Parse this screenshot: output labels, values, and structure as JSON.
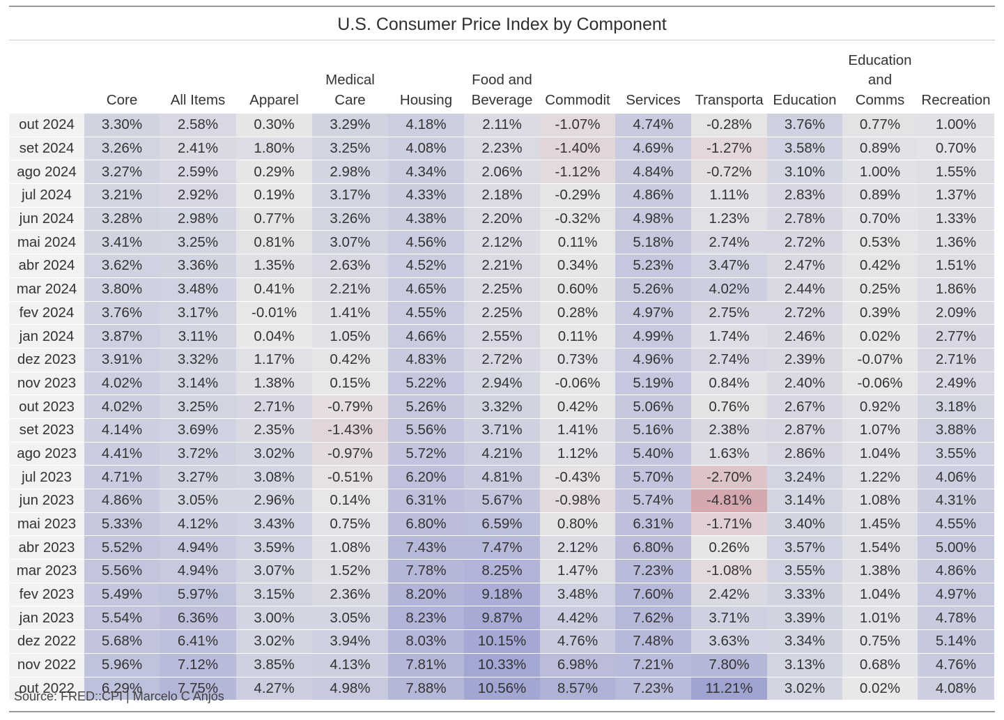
{
  "chart_data": {
    "type": "table",
    "title": "U.S. Consumer Price Index by Component",
    "columns": [
      "",
      "Core",
      "All Items",
      "Apparel",
      "Medical\nCare",
      "Housing",
      "Food and\nBeverage",
      "Commodit",
      "Services",
      "Transporta",
      "Education",
      "Education\nand\nComms",
      "Recreation"
    ],
    "rows": [
      {
        "date": "out 2024",
        "values": [
          "3.30%",
          "2.58%",
          "0.30%",
          "3.29%",
          "4.18%",
          "2.11%",
          "-1.07%",
          "4.74%",
          "-0.28%",
          "3.76%",
          "0.77%",
          "1.00%"
        ]
      },
      {
        "date": "set 2024",
        "values": [
          "3.26%",
          "2.41%",
          "1.80%",
          "3.25%",
          "4.08%",
          "2.23%",
          "-1.40%",
          "4.69%",
          "-1.27%",
          "3.58%",
          "0.89%",
          "0.70%"
        ]
      },
      {
        "date": "ago 2024",
        "values": [
          "3.27%",
          "2.59%",
          "0.29%",
          "2.98%",
          "4.34%",
          "2.06%",
          "-1.12%",
          "4.84%",
          "-0.72%",
          "3.10%",
          "1.00%",
          "1.55%"
        ]
      },
      {
        "date": "jul 2024",
        "values": [
          "3.21%",
          "2.92%",
          "0.19%",
          "3.17%",
          "4.33%",
          "2.18%",
          "-0.29%",
          "4.86%",
          "1.11%",
          "2.83%",
          "0.89%",
          "1.37%"
        ]
      },
      {
        "date": "jun 2024",
        "values": [
          "3.28%",
          "2.98%",
          "0.77%",
          "3.26%",
          "4.38%",
          "2.20%",
          "-0.32%",
          "4.98%",
          "1.23%",
          "2.78%",
          "0.70%",
          "1.33%"
        ]
      },
      {
        "date": "mai 2024",
        "values": [
          "3.41%",
          "3.25%",
          "0.81%",
          "3.07%",
          "4.56%",
          "2.12%",
          "0.11%",
          "5.18%",
          "2.74%",
          "2.72%",
          "0.53%",
          "1.36%"
        ]
      },
      {
        "date": "abr 2024",
        "values": [
          "3.62%",
          "3.36%",
          "1.35%",
          "2.63%",
          "4.52%",
          "2.21%",
          "0.34%",
          "5.23%",
          "3.47%",
          "2.47%",
          "0.42%",
          "1.51%"
        ]
      },
      {
        "date": "mar 2024",
        "values": [
          "3.80%",
          "3.48%",
          "0.41%",
          "2.21%",
          "4.65%",
          "2.25%",
          "0.60%",
          "5.26%",
          "4.02%",
          "2.44%",
          "0.25%",
          "1.86%"
        ]
      },
      {
        "date": "fev 2024",
        "values": [
          "3.76%",
          "3.17%",
          "-0.01%",
          "1.41%",
          "4.55%",
          "2.25%",
          "0.28%",
          "4.97%",
          "2.75%",
          "2.72%",
          "0.39%",
          "2.09%"
        ]
      },
      {
        "date": "jan 2024",
        "values": [
          "3.87%",
          "3.11%",
          "0.04%",
          "1.05%",
          "4.66%",
          "2.55%",
          "0.11%",
          "4.99%",
          "1.74%",
          "2.46%",
          "0.02%",
          "2.77%"
        ]
      },
      {
        "date": "dez 2023",
        "values": [
          "3.91%",
          "3.32%",
          "1.17%",
          "0.42%",
          "4.83%",
          "2.72%",
          "0.73%",
          "4.96%",
          "2.74%",
          "2.39%",
          "-0.07%",
          "2.71%"
        ]
      },
      {
        "date": "nov 2023",
        "values": [
          "4.02%",
          "3.14%",
          "1.38%",
          "0.15%",
          "5.22%",
          "2.94%",
          "-0.06%",
          "5.19%",
          "0.84%",
          "2.40%",
          "-0.06%",
          "2.49%"
        ]
      },
      {
        "date": "out 2023",
        "values": [
          "4.02%",
          "3.25%",
          "2.71%",
          "-0.79%",
          "5.26%",
          "3.32%",
          "0.42%",
          "5.06%",
          "0.76%",
          "2.67%",
          "0.92%",
          "3.18%"
        ]
      },
      {
        "date": "set 2023",
        "values": [
          "4.14%",
          "3.69%",
          "2.35%",
          "-1.43%",
          "5.56%",
          "3.71%",
          "1.41%",
          "5.16%",
          "2.38%",
          "2.87%",
          "1.07%",
          "3.88%"
        ]
      },
      {
        "date": "ago 2023",
        "values": [
          "4.41%",
          "3.72%",
          "3.02%",
          "-0.97%",
          "5.72%",
          "4.21%",
          "1.12%",
          "5.40%",
          "1.63%",
          "2.86%",
          "1.04%",
          "3.55%"
        ]
      },
      {
        "date": "jul 2023",
        "values": [
          "4.71%",
          "3.27%",
          "3.08%",
          "-0.51%",
          "6.20%",
          "4.81%",
          "-0.43%",
          "5.70%",
          "-2.70%",
          "3.24%",
          "1.22%",
          "4.06%"
        ]
      },
      {
        "date": "jun 2023",
        "values": [
          "4.86%",
          "3.05%",
          "2.96%",
          "0.14%",
          "6.31%",
          "5.67%",
          "-0.98%",
          "5.74%",
          "-4.81%",
          "3.14%",
          "1.08%",
          "4.31%"
        ]
      },
      {
        "date": "mai 2023",
        "values": [
          "5.33%",
          "4.12%",
          "3.43%",
          "0.75%",
          "6.80%",
          "6.59%",
          "0.80%",
          "6.31%",
          "-1.71%",
          "3.40%",
          "1.45%",
          "4.55%"
        ]
      },
      {
        "date": "abr 2023",
        "values": [
          "5.52%",
          "4.94%",
          "3.59%",
          "1.08%",
          "7.43%",
          "7.47%",
          "2.12%",
          "6.80%",
          "0.26%",
          "3.57%",
          "1.54%",
          "5.00%"
        ]
      },
      {
        "date": "mar 2023",
        "values": [
          "5.56%",
          "4.94%",
          "3.07%",
          "1.52%",
          "7.78%",
          "8.25%",
          "1.47%",
          "7.23%",
          "-1.08%",
          "3.55%",
          "1.38%",
          "4.86%"
        ]
      },
      {
        "date": "fev 2023",
        "values": [
          "5.49%",
          "5.97%",
          "3.15%",
          "2.36%",
          "8.20%",
          "9.18%",
          "3.48%",
          "7.60%",
          "2.42%",
          "3.33%",
          "1.04%",
          "4.97%"
        ]
      },
      {
        "date": "jan 2023",
        "values": [
          "5.54%",
          "6.36%",
          "3.00%",
          "3.05%",
          "8.23%",
          "9.87%",
          "4.42%",
          "7.62%",
          "3.71%",
          "3.39%",
          "1.01%",
          "4.78%"
        ]
      },
      {
        "date": "dez 2022",
        "values": [
          "5.68%",
          "6.41%",
          "3.02%",
          "3.94%",
          "8.03%",
          "10.15%",
          "4.76%",
          "7.48%",
          "3.63%",
          "3.34%",
          "0.75%",
          "5.14%"
        ]
      },
      {
        "date": "nov 2022",
        "values": [
          "5.96%",
          "7.12%",
          "3.85%",
          "4.13%",
          "7.81%",
          "10.33%",
          "6.98%",
          "7.21%",
          "7.80%",
          "3.13%",
          "0.68%",
          "4.76%"
        ]
      },
      {
        "date": "out 2022",
        "values": [
          "6.29%",
          "7.75%",
          "4.27%",
          "4.98%",
          "7.88%",
          "10.56%",
          "8.57%",
          "7.23%",
          "11.21%",
          "3.02%",
          "0.02%",
          "4.08%"
        ]
      }
    ],
    "color_scale": {
      "negative": "#d4a5ae",
      "neutral": "#e8e8e8",
      "positive": "#9fa3d2",
      "domain": [
        -5,
        0,
        11
      ]
    }
  },
  "source": "Source: FRED::CPI | Marcelo C Anjos"
}
